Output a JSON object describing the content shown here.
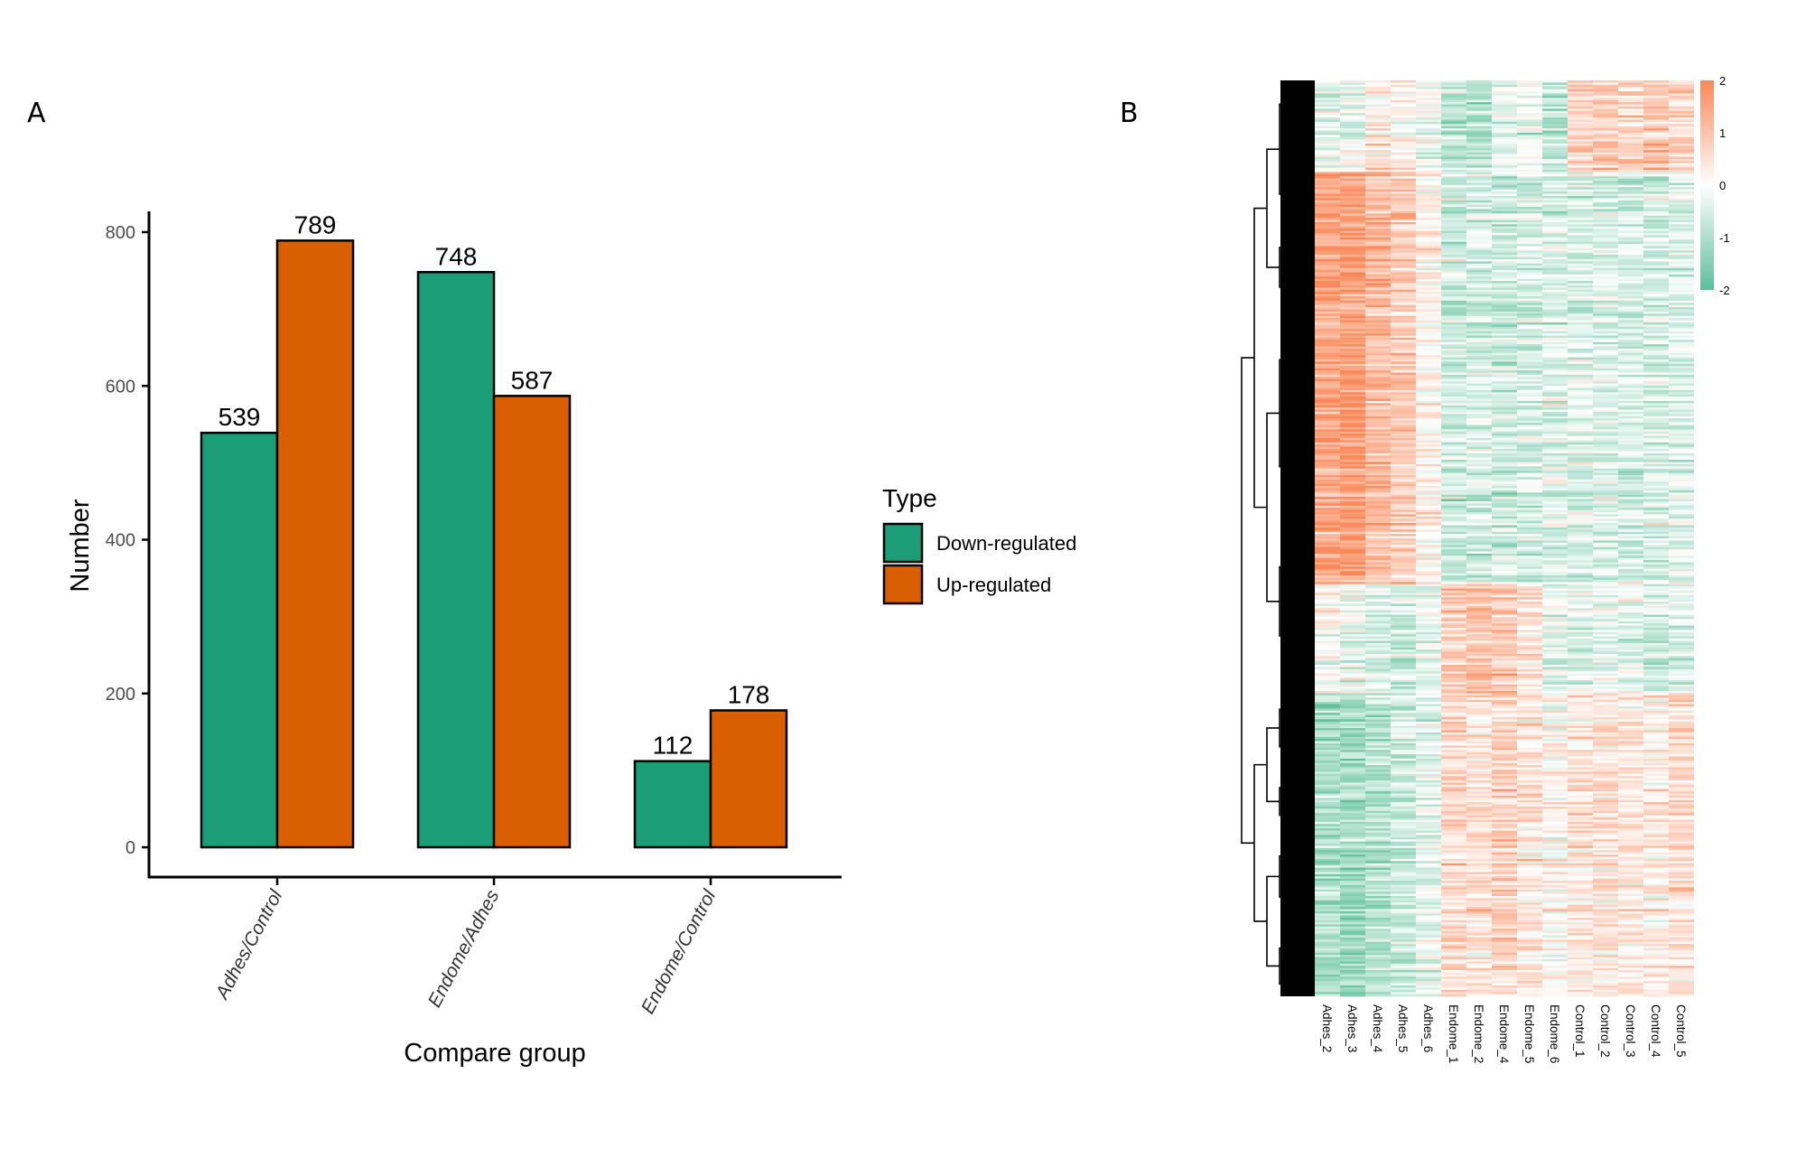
{
  "panels": {
    "a_label": "A",
    "b_label": "B"
  },
  "chart_data": [
    {
      "type": "bar",
      "panel": "A",
      "title": "",
      "xlabel": "Compare group",
      "ylabel": "Number",
      "categories": [
        "Adhes/Control",
        "Endome/Adhes",
        "Endome/Control"
      ],
      "series": [
        {
          "name": "Down-regulated",
          "color": "#1B9E77",
          "values": [
            539,
            748,
            112
          ]
        },
        {
          "name": "Up-regulated",
          "color": "#D95F02",
          "values": [
            789,
            587,
            178
          ]
        }
      ],
      "data_labels": [
        [
          "539",
          "789"
        ],
        [
          "748",
          "587"
        ],
        [
          "112",
          "178"
        ]
      ],
      "yticks": [
        0,
        200,
        400,
        600,
        800
      ],
      "ytick_labels": [
        "0",
        "200",
        "400",
        "600",
        "800"
      ],
      "ylim": [
        -40,
        830
      ],
      "grid": false,
      "legend": {
        "title": "Type",
        "placement": "right",
        "entries": [
          "Down-regulated",
          "Up-regulated"
        ]
      }
    },
    {
      "type": "heatmap",
      "panel": "B",
      "columns": [
        "Adhes_2",
        "Adhes_3",
        "Adhes_4",
        "Adhes_5",
        "Adhes_6",
        "Endome_1",
        "Endome_2",
        "Endome_4",
        "Endome_5",
        "Endome_6",
        "Control_1",
        "Control_2",
        "Control_3",
        "Control_4",
        "Control_5"
      ],
      "row_dendrogram": true,
      "colorscale": {
        "low": "#5CBF9B",
        "mid": "#FFFFFF",
        "high": "#F98757",
        "min": -2,
        "max": 2,
        "ticks": [
          2,
          1,
          0,
          -1,
          -2
        ],
        "tick_labels": [
          "2",
          "1",
          "0",
          "-1",
          "-2"
        ]
      },
      "row_cluster_profiles_approx": [
        {
          "cluster": "top",
          "share": 0.1,
          "means": [
            -0.4,
            -0.3,
            0.3,
            0.2,
            -0.2,
            -0.8,
            -0.9,
            -0.3,
            -0.2,
            -0.7,
            0.7,
            0.8,
            0.6,
            0.9,
            0.7
          ]
        },
        {
          "cluster": "adhes-high",
          "share": 0.45,
          "means": [
            1.5,
            1.6,
            1.1,
            0.8,
            0.2,
            -0.6,
            -0.5,
            -0.6,
            -0.5,
            -0.4,
            -0.4,
            -0.4,
            -0.5,
            -0.5,
            -0.4
          ]
        },
        {
          "cluster": "endome-high",
          "share": 0.12,
          "means": [
            0.1,
            -0.2,
            -0.4,
            -0.5,
            -0.3,
            0.9,
            1.1,
            0.9,
            0.6,
            -0.2,
            -0.4,
            -0.3,
            -0.3,
            -0.5,
            -0.3
          ]
        },
        {
          "cluster": "bottom",
          "share": 0.33,
          "means": [
            -1.0,
            -1.1,
            -0.9,
            -0.6,
            -0.3,
            0.6,
            0.5,
            0.7,
            0.4,
            0.1,
            0.4,
            0.5,
            0.4,
            0.3,
            0.6
          ]
        }
      ]
    }
  ]
}
